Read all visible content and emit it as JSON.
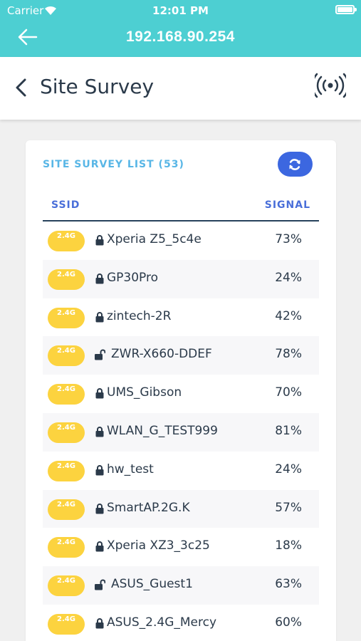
{
  "status_bar": {
    "carrier": "Carrier",
    "time": "12:01 PM"
  },
  "header": {
    "title": "192.168.90.254"
  },
  "page": {
    "title": "Site Survey"
  },
  "list": {
    "title": "SITE SURVEY LIST (53)",
    "col_ssid": "SSID",
    "col_signal": "SIGNAL",
    "rows": [
      {
        "band": "2.4G",
        "ssid": "Xperia Z5_5c4e",
        "signal": "73%",
        "locked": true
      },
      {
        "band": "2.4G",
        "ssid": "GP30Pro",
        "signal": "24%",
        "locked": true
      },
      {
        "band": "2.4G",
        "ssid": "zintech-2R",
        "signal": "42%",
        "locked": true
      },
      {
        "band": "2.4G",
        "ssid": "ZWR-X660-DDEF",
        "signal": "78%",
        "locked": false
      },
      {
        "band": "2.4G",
        "ssid": "UMS_Gibson",
        "signal": "70%",
        "locked": true
      },
      {
        "band": "2.4G",
        "ssid": "WLAN_G_TEST999",
        "signal": "81%",
        "locked": true
      },
      {
        "band": "2.4G",
        "ssid": "hw_test",
        "signal": "24%",
        "locked": true
      },
      {
        "band": "2.4G",
        "ssid": "SmartAP.2G.K",
        "signal": "57%",
        "locked": true
      },
      {
        "band": "2.4G",
        "ssid": "Xperia XZ3_3c25",
        "signal": "18%",
        "locked": true
      },
      {
        "band": "2.4G",
        "ssid": "ASUS_Guest1",
        "signal": "63%",
        "locked": false
      },
      {
        "band": "2.4G",
        "ssid": "ASUS_2.4G_Mercy",
        "signal": "60%",
        "locked": true
      }
    ]
  },
  "colors": {
    "header_bg": "#4dcfd2",
    "badge": "#fcd33f",
    "accent_blue": "#3c67e0",
    "list_title": "#58b6e6"
  },
  "icons": {
    "back": "arrow-left-icon",
    "chevron": "chevron-left-icon",
    "signal": "wireless-signal-icon",
    "refresh": "refresh-icon",
    "lock": "lock-icon",
    "unlock": "unlock-icon"
  }
}
